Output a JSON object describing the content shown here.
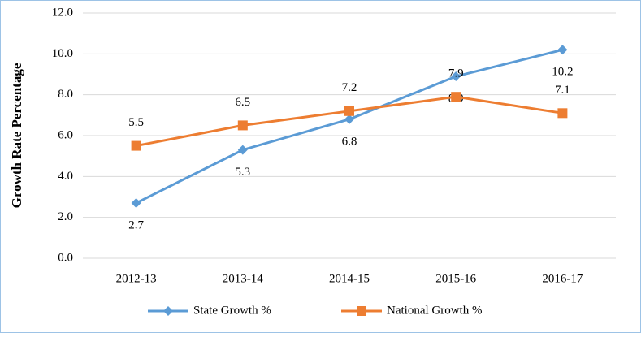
{
  "chart_data": {
    "type": "line",
    "y_label": "Growth Rate Percentage",
    "categories": [
      "2012-13",
      "2013-14",
      "2014-15",
      "2015-16",
      "2016-17"
    ],
    "series": [
      {
        "name": "State Growth %",
        "color": "#5b9bd5",
        "marker": "diamond",
        "values": [
          2.7,
          5.3,
          6.8,
          8.9,
          10.2
        ]
      },
      {
        "name": "National Growth %",
        "color": "#ed7d31",
        "marker": "square",
        "values": [
          5.5,
          6.5,
          7.2,
          7.9,
          7.1
        ]
      }
    ],
    "ylim": [
      0,
      12
    ],
    "yticks": [
      {
        "value": 0,
        "label": "0.0"
      },
      {
        "value": 2,
        "label": "2.0"
      },
      {
        "value": 4,
        "label": "4.0"
      },
      {
        "value": 6,
        "label": "6.0"
      },
      {
        "value": 8,
        "label": "8.0"
      },
      {
        "value": 10,
        "label": "10.0"
      },
      {
        "value": 12,
        "label": "12.0"
      }
    ],
    "grid": true,
    "legend": "bottom"
  }
}
